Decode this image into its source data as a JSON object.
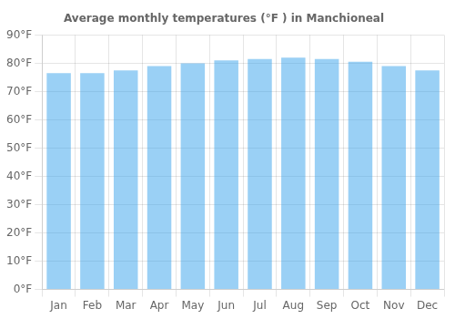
{
  "chart_data": {
    "type": "bar",
    "title": "Average monthly temperatures (°F ) in Manchioneal",
    "categories": [
      "Jan",
      "Feb",
      "Mar",
      "Apr",
      "May",
      "Jun",
      "Jul",
      "Aug",
      "Sep",
      "Oct",
      "Nov",
      "Dec"
    ],
    "values": [
      76.5,
      76.5,
      77.5,
      79.0,
      80.0,
      81.0,
      81.5,
      82.0,
      81.5,
      80.5,
      79.0,
      77.5
    ],
    "ylim": [
      0,
      90
    ],
    "yticks": [
      {
        "value": 0,
        "label": "0°F"
      },
      {
        "value": 10,
        "label": "10°F"
      },
      {
        "value": 20,
        "label": "20°F"
      },
      {
        "value": 30,
        "label": "30°F"
      },
      {
        "value": 40,
        "label": "40°F"
      },
      {
        "value": 50,
        "label": "50°F"
      },
      {
        "value": 60,
        "label": "60°F"
      },
      {
        "value": 70,
        "label": "70°F"
      },
      {
        "value": 80,
        "label": "80°F"
      },
      {
        "value": 90,
        "label": "90°F"
      }
    ],
    "grid": true
  }
}
